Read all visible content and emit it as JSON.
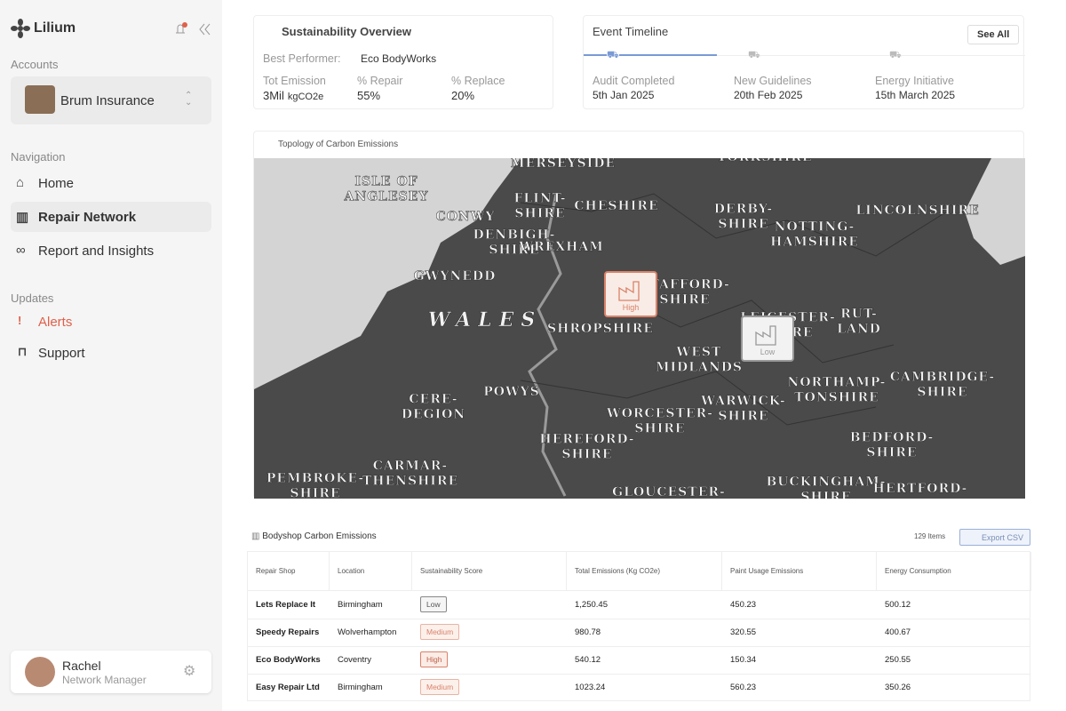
{
  "sidebar": {
    "brand": "Lilium",
    "accounts_label": "Accounts",
    "account": "Brum Insurance",
    "navigation_label": "Navigation",
    "nav": [
      "Home",
      "Repair Network",
      "Report and Insights"
    ],
    "updates_label": "Updates",
    "updates": [
      "Alerts",
      "Support"
    ],
    "user": {
      "name": "Rachel",
      "role": "Network Manager"
    }
  },
  "overview": {
    "title": "Sustainability Overview",
    "best_performer_label": "Best Performer:",
    "best_performer": "Eco BodyWorks",
    "stats": [
      {
        "label": "Tot Emission",
        "value": "3Mil",
        "unit": "kgCO2e"
      },
      {
        "label": "% Repair",
        "value": "55%"
      },
      {
        "label": "% Replace",
        "value": "20%"
      }
    ]
  },
  "timeline": {
    "title": "Event Timeline",
    "action": "See All",
    "events": [
      {
        "title": "Audit Completed",
        "date": "5th Jan 2025"
      },
      {
        "title": "New Guidelines",
        "date": "20th Feb 2025"
      },
      {
        "title": "Energy Initiative",
        "date": "15th March 2025"
      }
    ]
  },
  "map": {
    "title": "Topology of Carbon Emissions",
    "labels": [
      [
        "MERSEYSIDE"
      ],
      [
        "YORKSHIRE"
      ],
      [
        "ISLE OF",
        "ANGLESEY"
      ],
      [
        "CONWY"
      ],
      [
        "FLINT-",
        "SHIRE"
      ],
      [
        "CHESHIRE"
      ],
      [
        "DENBIGH-",
        "SHIRE"
      ],
      [
        "WREXHAM"
      ],
      [
        "DERBY-",
        "SHIRE"
      ],
      [
        "NOTTING-",
        "HAMSHIRE"
      ],
      [
        "LINCOLNSHIRE"
      ],
      [
        "GWYNEDD"
      ],
      [
        "STAFFORD-",
        "SHIRE"
      ],
      [
        "WALES"
      ],
      [
        "SHROPSHIRE"
      ],
      [
        "LEICESTER-",
        "SHIRE"
      ],
      [
        "RUT-",
        "LAND"
      ],
      [
        "WEST",
        "MIDLANDS"
      ],
      [
        "CERE-",
        "DEGION"
      ],
      [
        "POWYS"
      ],
      [
        "WARWICK-",
        "SHIRE"
      ],
      [
        "NORTHAMP-",
        "TONSHIRE"
      ],
      [
        "CAMBRIDGE-",
        "SHIRE"
      ],
      [
        "WORCESTER-",
        "SHIRE"
      ],
      [
        "HEREFORD-",
        "SHIRE"
      ],
      [
        "BEDFORD-",
        "SHIRE"
      ],
      [
        "CARMAR-",
        "THENSHIRE"
      ],
      [
        "PEMBROKE-",
        "SHIRE"
      ],
      [
        "GLOUCESTER-"
      ],
      [
        "BUCKINGHAM-",
        "SHIRE"
      ],
      [
        "HERTFORD-"
      ]
    ],
    "markers": [
      "High",
      "Low"
    ]
  },
  "table": {
    "title": "Bodyshop Carbon Emissions",
    "count": "129 Items",
    "export": "Export CSV",
    "columns": [
      "Repair Shop",
      "Location",
      "Sustainability Score",
      "Total Emissions (Kg CO2e)",
      "Paint Usage Emissions",
      "Energy Consumption"
    ],
    "rows": [
      [
        "Lets Replace It",
        "Birmingham",
        "Low",
        "1,250.45",
        "450.23",
        "500.12"
      ],
      [
        "Speedy Repairs",
        "Wolverhampton",
        "Medium",
        "980.78",
        "320.55",
        "400.67"
      ],
      [
        "Eco BodyWorks",
        "Coventry",
        "High",
        "540.12",
        "150.34",
        "250.55"
      ],
      [
        "Easy Repair Ltd",
        "Birmingham",
        "Medium",
        "1023.24",
        "560.23",
        "350.26"
      ]
    ]
  }
}
